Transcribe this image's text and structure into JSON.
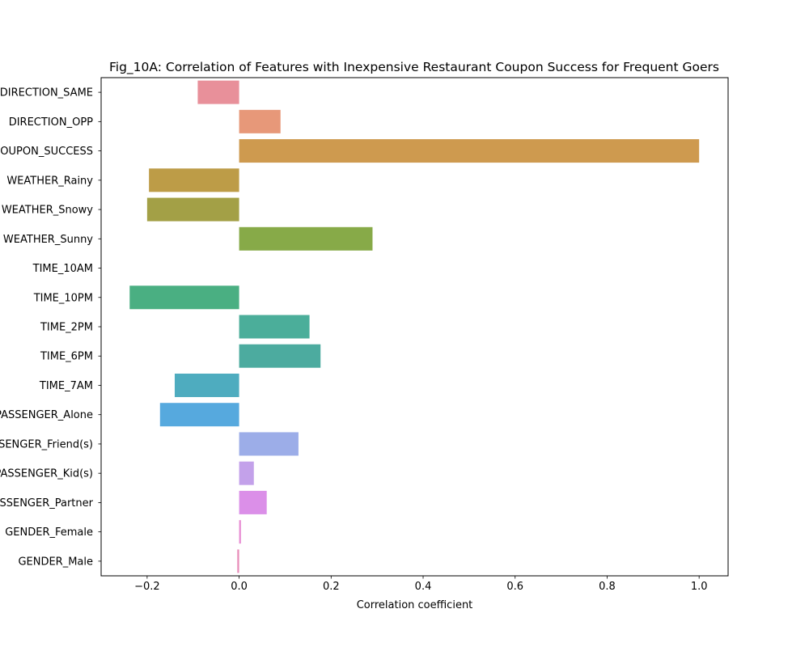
{
  "chart_data": {
    "type": "bar",
    "orientation": "horizontal",
    "title": "Fig_10A: Correlation of Features with Inexpensive Restaurant Coupon Success for Frequent Goers",
    "xlabel": "Correlation coefficient",
    "ylabel": "",
    "xlim": [
      -0.3,
      1.063
    ],
    "xticks": [
      -0.2,
      0.0,
      0.2,
      0.4,
      0.6,
      0.8,
      1.0
    ],
    "xtick_labels": [
      "−0.2",
      "0.0",
      "0.2",
      "0.4",
      "0.6",
      "0.8",
      "1.0"
    ],
    "grid": false,
    "categories": [
      "DIRECTION_SAME",
      "DIRECTION_OPP",
      "COUPON_SUCCESS",
      "WEATHER_Rainy",
      "WEATHER_Snowy",
      "WEATHER_Sunny",
      "TIME_10AM",
      "TIME_10PM",
      "TIME_2PM",
      "TIME_6PM",
      "TIME_7AM",
      "PASSENGER_Alone",
      "PASSENGER_Friend(s)",
      "PASSENGER_Kid(s)",
      "PASSENGER_Partner",
      "GENDER_Female",
      "GENDER_Male"
    ],
    "values": [
      -0.09,
      0.09,
      1.0,
      -0.196,
      -0.2,
      0.29,
      0.0,
      -0.238,
      0.153,
      0.177,
      -0.14,
      -0.172,
      0.129,
      0.032,
      0.06,
      0.004,
      -0.004
    ],
    "colors": [
      "#e8909a",
      "#e79879",
      "#ce9a4f",
      "#bd9c47",
      "#a3a046",
      "#87aa48",
      "#4fad6e",
      "#4aaf82",
      "#4bae9a",
      "#4cab9f",
      "#4eacbf",
      "#56a9de",
      "#9cade8",
      "#c3a1ea",
      "#db8fe8",
      "#e88dd3",
      "#e88db9"
    ]
  }
}
